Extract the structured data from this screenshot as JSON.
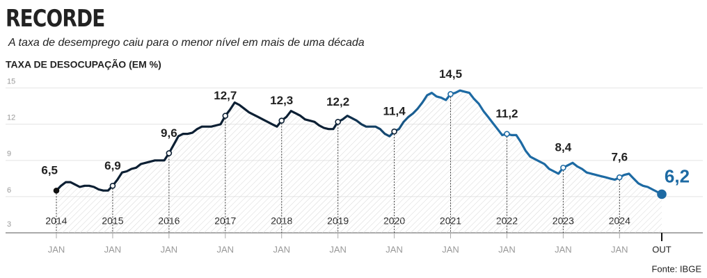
{
  "chart_data": {
    "type": "line",
    "title": "RECORDE",
    "subtitle": "A taxa de desemprego caiu para o menor nível em mais de uma década",
    "y_label": "TAXA DE DESOCUPAÇÃO (EM %)",
    "source": "Fonte: IBGE",
    "xlim": [
      "2014-01",
      "2024-10"
    ],
    "ylim": [
      3,
      15.5
    ],
    "yticks": [
      3,
      6,
      9,
      12,
      15
    ],
    "grid": true,
    "xticks": [
      {
        "value": "2014-01",
        "label": "JAN"
      },
      {
        "value": "2015-01",
        "label": "JAN"
      },
      {
        "value": "2016-01",
        "label": "JAN"
      },
      {
        "value": "2017-01",
        "label": "JAN"
      },
      {
        "value": "2018-01",
        "label": "JAN"
      },
      {
        "value": "2019-01",
        "label": "JAN"
      },
      {
        "value": "2020-01",
        "label": "JAN"
      },
      {
        "value": "2021-01",
        "label": "JAN"
      },
      {
        "value": "2022-01",
        "label": "JAN"
      },
      {
        "value": "2023-01",
        "label": "JAN"
      },
      {
        "value": "2024-01",
        "label": "JAN"
      },
      {
        "value": "2024-10",
        "label": "OUT"
      }
    ],
    "year_labels": [
      "2014",
      "2015",
      "2016",
      "2017",
      "2018",
      "2019",
      "2020",
      "2021",
      "2022",
      "2023",
      "2024"
    ],
    "x": [
      "2014-01",
      "2014-02",
      "2014-03",
      "2014-04",
      "2014-05",
      "2014-06",
      "2014-07",
      "2014-08",
      "2014-09",
      "2014-10",
      "2014-11",
      "2014-12",
      "2015-01",
      "2015-02",
      "2015-03",
      "2015-04",
      "2015-05",
      "2015-06",
      "2015-07",
      "2015-08",
      "2015-09",
      "2015-10",
      "2015-11",
      "2015-12",
      "2016-01",
      "2016-02",
      "2016-03",
      "2016-04",
      "2016-05",
      "2016-06",
      "2016-07",
      "2016-08",
      "2016-09",
      "2016-10",
      "2016-11",
      "2016-12",
      "2017-01",
      "2017-02",
      "2017-03",
      "2017-04",
      "2017-05",
      "2017-06",
      "2017-07",
      "2017-08",
      "2017-09",
      "2017-10",
      "2017-11",
      "2017-12",
      "2018-01",
      "2018-02",
      "2018-03",
      "2018-04",
      "2018-05",
      "2018-06",
      "2018-07",
      "2018-08",
      "2018-09",
      "2018-10",
      "2018-11",
      "2018-12",
      "2019-01",
      "2019-02",
      "2019-03",
      "2019-04",
      "2019-05",
      "2019-06",
      "2019-07",
      "2019-08",
      "2019-09",
      "2019-10",
      "2019-11",
      "2019-12",
      "2020-01",
      "2020-02",
      "2020-03",
      "2020-04",
      "2020-05",
      "2020-06",
      "2020-07",
      "2020-08",
      "2020-09",
      "2020-10",
      "2020-11",
      "2020-12",
      "2021-01",
      "2021-02",
      "2021-03",
      "2021-04",
      "2021-05",
      "2021-06",
      "2021-07",
      "2021-08",
      "2021-09",
      "2021-10",
      "2021-11",
      "2021-12",
      "2022-01",
      "2022-02",
      "2022-03",
      "2022-04",
      "2022-05",
      "2022-06",
      "2022-07",
      "2022-08",
      "2022-09",
      "2022-10",
      "2022-11",
      "2022-12",
      "2023-01",
      "2023-02",
      "2023-03",
      "2023-04",
      "2023-05",
      "2023-06",
      "2023-07",
      "2023-08",
      "2023-09",
      "2023-10",
      "2023-11",
      "2023-12",
      "2024-01",
      "2024-02",
      "2024-03",
      "2024-04",
      "2024-05",
      "2024-06",
      "2024-07",
      "2024-08",
      "2024-09",
      "2024-10"
    ],
    "series": [
      {
        "color": "#1d6aa3",
        "color_start": "#0c1f33",
        "values": [
          6.5,
          6.9,
          7.2,
          7.2,
          7.0,
          6.8,
          6.9,
          6.9,
          6.8,
          6.6,
          6.5,
          6.5,
          6.9,
          7.4,
          8.0,
          8.1,
          8.3,
          8.4,
          8.7,
          8.8,
          8.9,
          9.0,
          9.0,
          9.0,
          9.6,
          10.3,
          11.0,
          11.2,
          11.2,
          11.3,
          11.6,
          11.8,
          11.8,
          11.8,
          11.9,
          12.0,
          12.7,
          13.2,
          13.8,
          13.6,
          13.3,
          13.0,
          12.8,
          12.6,
          12.4,
          12.2,
          12.0,
          11.8,
          12.3,
          12.6,
          13.1,
          12.9,
          12.7,
          12.4,
          12.3,
          12.2,
          11.9,
          11.7,
          11.6,
          11.6,
          12.2,
          12.4,
          12.7,
          12.5,
          12.3,
          12.0,
          11.8,
          11.8,
          11.8,
          11.6,
          11.2,
          11.0,
          11.4,
          11.6,
          12.2,
          12.6,
          12.9,
          13.3,
          13.8,
          14.4,
          14.6,
          14.3,
          14.2,
          14.0,
          14.5,
          14.6,
          14.8,
          14.7,
          14.6,
          14.1,
          13.7,
          13.1,
          12.6,
          12.1,
          11.6,
          11.1,
          11.2,
          11.1,
          11.1,
          10.5,
          9.8,
          9.3,
          9.1,
          8.9,
          8.7,
          8.3,
          8.1,
          7.9,
          8.4,
          8.6,
          8.8,
          8.5,
          8.3,
          8.0,
          7.9,
          7.8,
          7.7,
          7.6,
          7.5,
          7.4,
          7.6,
          7.8,
          7.9,
          7.5,
          7.1,
          6.9,
          6.8,
          6.6,
          6.4,
          6.2
        ],
        "value_labels": [
          "6,5",
          null,
          null,
          null,
          null,
          null,
          null,
          null,
          null,
          null,
          null,
          null,
          "6,9",
          null,
          null,
          null,
          null,
          null,
          null,
          null,
          null,
          null,
          null,
          null,
          "9,6",
          null,
          null,
          null,
          null,
          null,
          null,
          null,
          null,
          null,
          null,
          null,
          "12,7",
          null,
          null,
          null,
          null,
          null,
          null,
          null,
          null,
          null,
          null,
          null,
          "12,3",
          null,
          null,
          null,
          null,
          null,
          null,
          null,
          null,
          null,
          null,
          null,
          "12,2",
          null,
          null,
          null,
          null,
          null,
          null,
          null,
          null,
          null,
          null,
          null,
          "11,4",
          null,
          null,
          null,
          null,
          null,
          null,
          null,
          null,
          null,
          null,
          null,
          "14,5",
          null,
          null,
          null,
          null,
          null,
          null,
          null,
          null,
          null,
          null,
          null,
          "11,2",
          null,
          null,
          null,
          null,
          null,
          null,
          null,
          null,
          null,
          null,
          null,
          "8,4",
          null,
          null,
          null,
          null,
          null,
          null,
          null,
          null,
          null,
          null,
          null,
          "7,6",
          null,
          null,
          null,
          null,
          null,
          null,
          null,
          null,
          "6,2"
        ]
      }
    ]
  }
}
